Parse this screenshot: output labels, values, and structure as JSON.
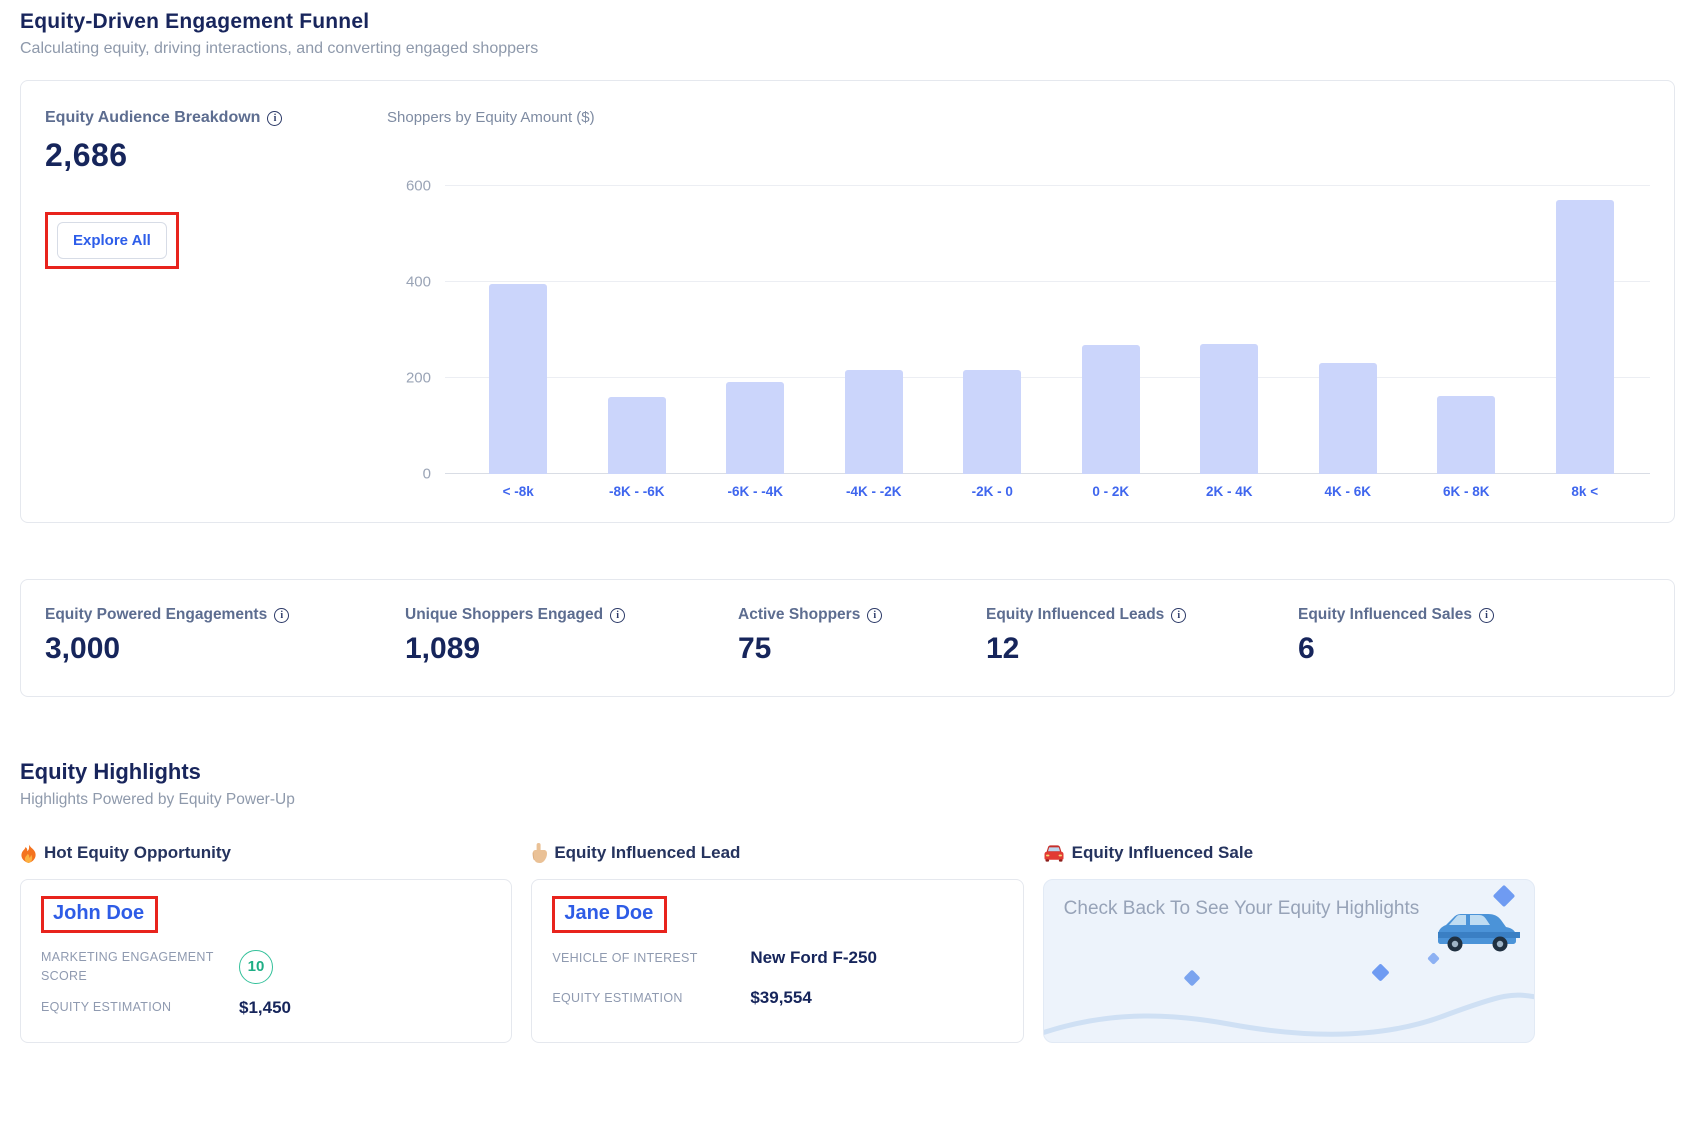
{
  "page": {
    "title": "Equity-Driven Engagement Funnel",
    "subtitle": "Calculating equity, driving interactions, and converting engaged shoppers"
  },
  "audience_card": {
    "label": "Equity Audience Breakdown",
    "value": "2,686",
    "explore_button": "Explore All"
  },
  "chart_data": {
    "type": "bar",
    "title": "Shoppers by Equity Amount ($)",
    "categories": [
      "< -8k",
      "-8K - -6K",
      "-6K - -4K",
      "-4K - -2K",
      "-2K - 0",
      "0 - 2K",
      "2K - 4K",
      "4K - 6K",
      "6K - 8K",
      "8k <"
    ],
    "values": [
      395,
      160,
      192,
      217,
      217,
      269,
      271,
      231,
      163,
      571
    ],
    "title_position": "top-left",
    "xlabel": "",
    "ylabel": "",
    "ylim": [
      0,
      600
    ],
    "yticks": [
      0,
      200,
      400,
      600
    ],
    "grid": true,
    "legend": false,
    "bar_color": "#cbd5fb",
    "x_label_color": "#3f66ee"
  },
  "stats": [
    {
      "label": "Equity Powered Engagements",
      "value": "3,000"
    },
    {
      "label": "Unique Shoppers Engaged",
      "value": "1,089"
    },
    {
      "label": "Active Shoppers",
      "value": "75"
    },
    {
      "label": "Equity Influenced Leads",
      "value": "12"
    },
    {
      "label": "Equity Influenced Sales",
      "value": "6"
    }
  ],
  "highlights": {
    "title": "Equity Highlights",
    "subtitle": "Highlights Powered by Equity Power-Up",
    "hot": {
      "heading": "Hot Equity Opportunity",
      "icon": "fire-icon",
      "name": "John Doe",
      "score_label": "MARKETING ENGAGEMENT SCORE",
      "score_value": "10",
      "estimation_label": "EQUITY ESTIMATION",
      "estimation_value": "$1,450"
    },
    "lead": {
      "heading": "Equity Influenced Lead",
      "icon": "pointing-hand-icon",
      "name": "Jane Doe",
      "vehicle_label": "VEHICLE OF INTEREST",
      "vehicle_value": "New Ford F-250",
      "estimation_label": "EQUITY ESTIMATION",
      "estimation_value": "$39,554"
    },
    "sale": {
      "heading": "Equity Influenced Sale",
      "icon": "car-icon",
      "empty_message": "Check Back To See Your Equity Highlights"
    }
  },
  "colors": {
    "accent_blue": "#2e5ce6",
    "navy": "#16255b",
    "bar_fill": "#cbd5fb",
    "annotation_red": "#e8231d",
    "score_green": "#1fae85",
    "sale_bg": "#edf3fb"
  }
}
